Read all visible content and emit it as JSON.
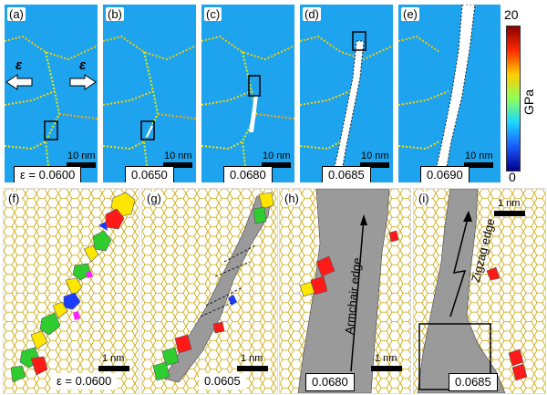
{
  "colors": {
    "stress_background": "#1ea3ee",
    "crack": "#ffffff",
    "lattice_bond": "#c9a400",
    "five_ring": "#ff1a1a",
    "seven_ring": "#2ecc2e",
    "eight_ring": "#ffe600",
    "four_ring": "#1a3cff",
    "other_ring": "#ff22ff",
    "crack_fill": "#9a9a9a"
  },
  "top_row": {
    "panels": [
      {
        "label": "(a)",
        "strain": "ε = 0.0600",
        "scale": "10 nm"
      },
      {
        "label": "(b)",
        "strain": "0.0650",
        "scale": "10 nm"
      },
      {
        "label": "(c)",
        "strain": "0.0680",
        "scale": "10 nm"
      },
      {
        "label": "(d)",
        "strain": "0.0685",
        "scale": "10 nm"
      },
      {
        "label": "(e)",
        "strain": "0.0690",
        "scale": "10 nm"
      }
    ],
    "arrow_left_label": "ε",
    "arrow_right_label": "ε"
  },
  "colorbar": {
    "max": "20",
    "min": "0",
    "unit": "GPa"
  },
  "bottom_row": {
    "panels": [
      {
        "label": "(f)",
        "strain": "ε = 0.0600",
        "scale": "1 nm"
      },
      {
        "label": "(g)",
        "strain": "0.0605",
        "scale": "1 nm"
      },
      {
        "label": "(h)",
        "strain": "0.0680",
        "scale": "1 nm",
        "annotation": "Armchair edge"
      },
      {
        "label": "(i)",
        "strain": "0.0685",
        "scale": "1 nm",
        "annotation": "Zigzag edge"
      }
    ]
  }
}
